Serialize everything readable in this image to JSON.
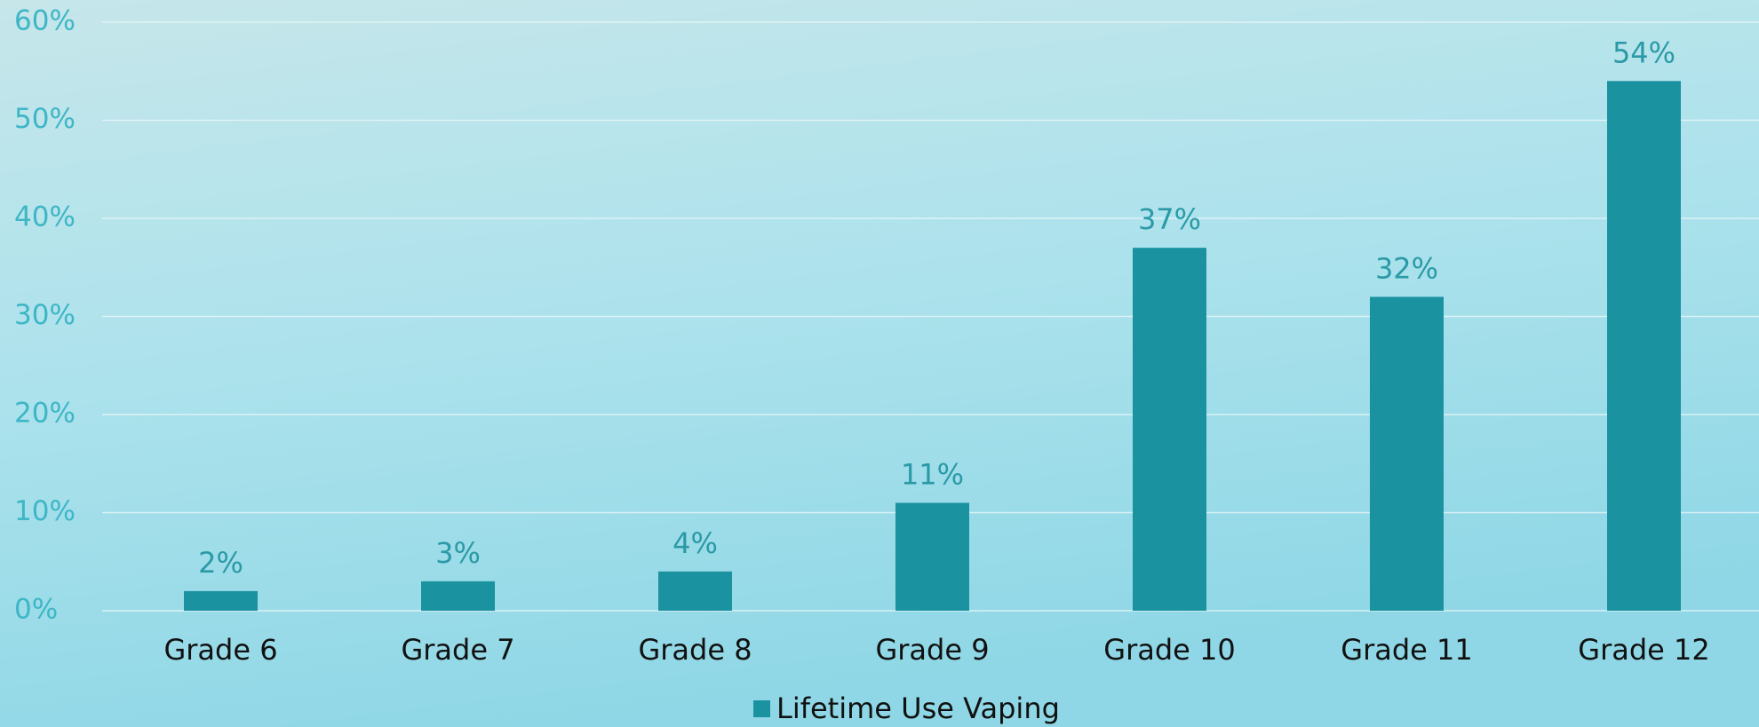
{
  "chart_data": {
    "type": "bar",
    "categories": [
      "Grade 6",
      "Grade 7",
      "Grade 8",
      "Grade 9",
      "Grade 10",
      "Grade 11",
      "Grade 12"
    ],
    "series": [
      {
        "name": "Lifetime Use Vaping",
        "color": "#1b92a0",
        "values": [
          2,
          3,
          4,
          11,
          37,
          32,
          54
        ],
        "value_labels": [
          "2%",
          "3%",
          "4%",
          "11%",
          "37%",
          "32%",
          "54%"
        ]
      }
    ],
    "ylim": [
      0,
      60
    ],
    "yticks": [
      {
        "value": 0,
        "label": "0%"
      },
      {
        "value": 10,
        "label": "10%"
      },
      {
        "value": 20,
        "label": "20%"
      },
      {
        "value": 30,
        "label": "30%"
      },
      {
        "value": 40,
        "label": "40%"
      },
      {
        "value": 50,
        "label": "50%"
      },
      {
        "value": 60,
        "label": "60%"
      }
    ],
    "grid": true,
    "legend": "bottom"
  }
}
